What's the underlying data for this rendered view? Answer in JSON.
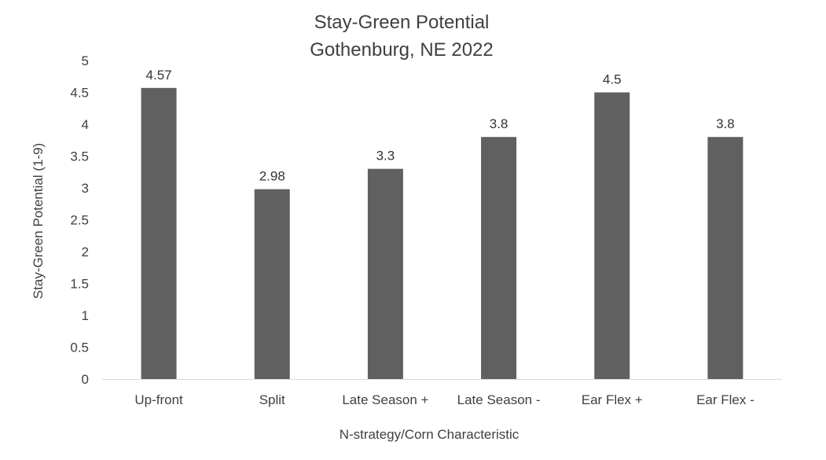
{
  "chart_data": {
    "type": "bar",
    "title_lines": [
      "Stay-Green Potential",
      "Gothenburg, NE 2022"
    ],
    "xlabel": "N-strategy/Corn Characteristic",
    "ylabel": "Stay-Green Potential (1-9)",
    "categories": [
      "Up-front",
      "Split",
      "Late Season +",
      "Late Season -",
      "Ear Flex +",
      "Ear Flex -"
    ],
    "values": [
      4.57,
      2.98,
      3.3,
      3.8,
      4.5,
      3.8
    ],
    "data_labels": [
      "4.57",
      "2.98",
      "3.3",
      "3.8",
      "4.5",
      "3.8"
    ],
    "yticks": [
      "0",
      "0.5",
      "1",
      "1.5",
      "2",
      "2.5",
      "3",
      "3.5",
      "4",
      "4.5",
      "5"
    ],
    "ylim": [
      0,
      5
    ],
    "grid": false,
    "legend": "none",
    "bar_color": "#5f605f",
    "axis_color": "#d9d9d9"
  }
}
